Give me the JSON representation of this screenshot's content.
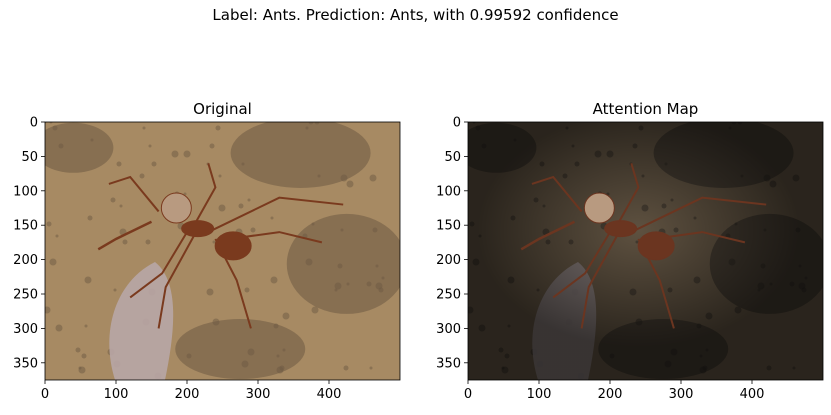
{
  "figure": {
    "suptitle": "Label: Ants. Prediction: Ants, with 0.99592 confidence"
  },
  "chart_data": [
    {
      "type": "image",
      "title": "Original",
      "xlabel": "",
      "ylabel": "",
      "xlim": [
        0,
        500
      ],
      "ylim": [
        375,
        0
      ],
      "xticks": [
        0,
        100,
        200,
        300,
        400
      ],
      "yticks": [
        0,
        50,
        100,
        150,
        200,
        250,
        300,
        350
      ],
      "grid": false,
      "content": "photo of an ant on soil",
      "palette": {
        "soil": "#a78a63",
        "soil_dark": "#6e5a44",
        "leaf": "#b8a6a6",
        "ant": "#7a3a1e"
      }
    },
    {
      "type": "image",
      "title": "Attention Map",
      "xlabel": "",
      "ylabel": "",
      "xlim": [
        0,
        500
      ],
      "ylim": [
        375,
        0
      ],
      "xticks": [
        0,
        100,
        200,
        300,
        400
      ],
      "yticks": [
        0,
        50,
        100,
        150,
        200,
        250,
        300,
        350
      ],
      "grid": false,
      "content": "attention-weighted photo, brightest around the ant",
      "palette": {
        "soil": "#5e5140",
        "soil_dark": "#2a2620",
        "leaf": "#7f7676",
        "ant": "#6b3520"
      }
    }
  ]
}
